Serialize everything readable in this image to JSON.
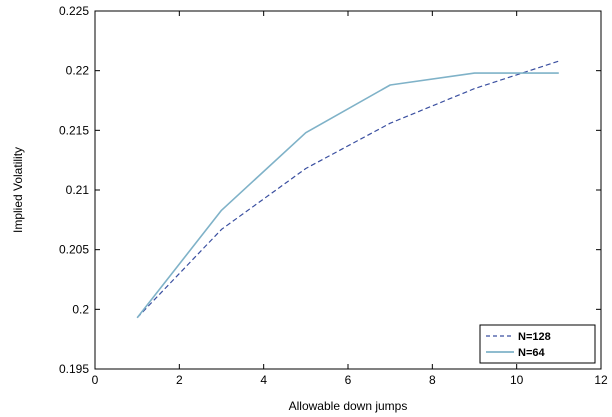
{
  "chart_data": {
    "type": "line",
    "title": "",
    "xlabel": "Allowable down jumps",
    "ylabel": "Implied Volatility",
    "xlim": [
      0,
      12
    ],
    "ylim": [
      0.195,
      0.225
    ],
    "xticks": [
      0,
      2,
      4,
      6,
      8,
      10,
      12
    ],
    "yticks": [
      0.195,
      0.2,
      0.205,
      0.21,
      0.215,
      0.22,
      0.225
    ],
    "xtick_labels": [
      "0",
      "2",
      "4",
      "6",
      "8",
      "10",
      "12"
    ],
    "ytick_labels": [
      "0.195",
      "0.2",
      "0.205",
      "0.21",
      "0.215",
      "0.22",
      "0.225"
    ],
    "grid": false,
    "legend_position": "bottom-right",
    "series": [
      {
        "name": "N=128",
        "style": "dashed",
        "color": "#3a4fa0",
        "x": [
          1,
          3,
          5,
          7,
          9,
          11
        ],
        "y": [
          0.1993,
          0.2067,
          0.2118,
          0.2156,
          0.2185,
          0.2208
        ]
      },
      {
        "name": "N=64",
        "style": "solid",
        "color": "#7fb2c8",
        "x": [
          1,
          3,
          5,
          7,
          9,
          11
        ],
        "y": [
          0.1993,
          0.2083,
          0.2148,
          0.2188,
          0.2198,
          0.2198
        ]
      }
    ]
  }
}
